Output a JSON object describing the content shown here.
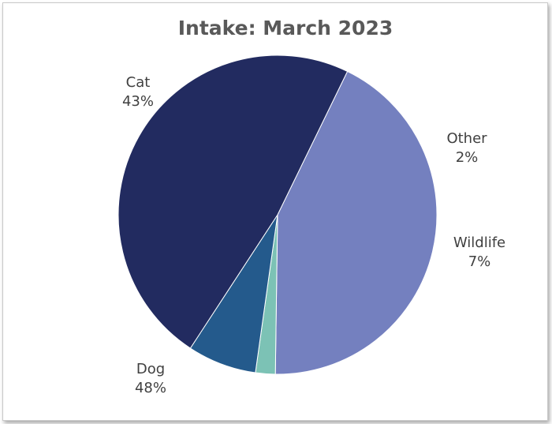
{
  "chart_data": {
    "type": "pie",
    "title": "Intake: March 2023",
    "slices": [
      {
        "label": "Cat",
        "value": 43,
        "value_label": "43%",
        "color": "#7480bf"
      },
      {
        "label": "Other",
        "value": 2,
        "value_label": "2%",
        "color": "#7cc2b5"
      },
      {
        "label": "Wildlife",
        "value": 7,
        "value_label": "7%",
        "color": "#245a8c"
      },
      {
        "label": "Dog",
        "value": 48,
        "value_label": "48%",
        "color": "#222b60"
      }
    ],
    "legend": "none",
    "data_labels": "outside"
  }
}
